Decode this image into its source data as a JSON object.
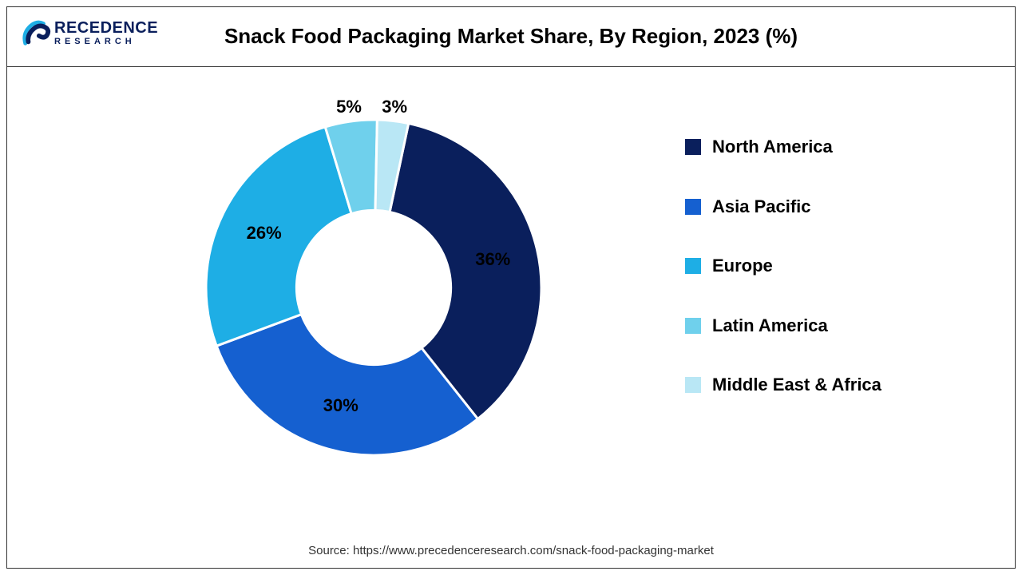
{
  "logo": {
    "main": "RECEDENCE",
    "sub": "RESEARCH",
    "icon_color_dark": "#0a1f5c",
    "icon_color_light": "#1eaee5"
  },
  "title": "Snack Food Packaging Market Share, By Region, 2023 (%)",
  "chart": {
    "type": "donut",
    "inner_radius_ratio": 0.46,
    "background_color": "#ffffff",
    "stroke_color": "#ffffff",
    "stroke_width": 3,
    "start_angle_deg": 12,
    "label_fontsize": 22,
    "label_fontweight": 700,
    "label_color": "#000000",
    "slices": [
      {
        "name": "North America",
        "value": 36,
        "color": "#0a1f5c",
        "label": "36%"
      },
      {
        "name": "Asia Pacific",
        "value": 30,
        "color": "#1560d0",
        "label": "30%"
      },
      {
        "name": "Europe",
        "value": 26,
        "color": "#1eaee5",
        "label": "26%"
      },
      {
        "name": "Latin America",
        "value": 5,
        "color": "#6fd0ec",
        "label": "5%"
      },
      {
        "name": "Middle East & Africa",
        "value": 3,
        "color": "#b9e7f5",
        "label": "3%"
      }
    ]
  },
  "legend": {
    "fontsize": 22,
    "fontweight": 700,
    "swatch_size": 20,
    "items": [
      {
        "label": "North America",
        "color": "#0a1f5c"
      },
      {
        "label": "Asia Pacific",
        "color": "#1560d0"
      },
      {
        "label": "Europe",
        "color": "#1eaee5"
      },
      {
        "label": "Latin America",
        "color": "#6fd0ec"
      },
      {
        "label": "Middle East & Africa",
        "color": "#b9e7f5"
      }
    ]
  },
  "source": "Source: https://www.precedenceresearch.com/snack-food-packaging-market"
}
